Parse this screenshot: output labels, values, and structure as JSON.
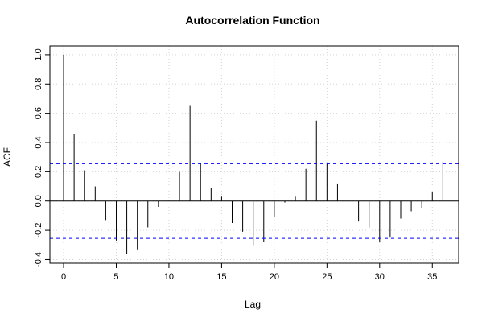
{
  "chart_data": {
    "type": "bar",
    "title": "Autocorrelation Function",
    "xlabel": "Lag",
    "ylabel": "ACF",
    "x": [
      0,
      1,
      2,
      3,
      4,
      5,
      6,
      7,
      8,
      9,
      10,
      11,
      12,
      13,
      14,
      15,
      16,
      17,
      18,
      19,
      20,
      21,
      22,
      23,
      24,
      25,
      26,
      27,
      28,
      29,
      30,
      31,
      32,
      33,
      34,
      35,
      36
    ],
    "values": [
      1.0,
      0.46,
      0.21,
      0.1,
      -0.13,
      -0.27,
      -0.36,
      -0.33,
      -0.18,
      -0.04,
      0.0,
      0.2,
      0.65,
      0.26,
      0.09,
      0.03,
      -0.15,
      -0.21,
      -0.3,
      -0.28,
      -0.11,
      -0.01,
      0.03,
      0.22,
      0.55,
      0.26,
      0.12,
      0.0,
      -0.14,
      -0.18,
      -0.28,
      -0.25,
      -0.12,
      -0.07,
      -0.05,
      0.06,
      0.27
    ],
    "confidence_limits": [
      0.255,
      -0.255
    ],
    "xlim": [
      -1.3,
      37.5
    ],
    "ylim": [
      -0.425,
      1.06
    ],
    "x_ticks": [
      0,
      5,
      10,
      15,
      20,
      25,
      30,
      35
    ],
    "y_ticks": [
      -0.4,
      -0.2,
      0.0,
      0.2,
      0.4,
      0.6,
      0.8,
      1.0
    ],
    "x_tick_labels": [
      "0",
      "5",
      "10",
      "15",
      "20",
      "25",
      "30",
      "35"
    ],
    "y_tick_labels": [
      "-0.4",
      "-0.2",
      "0.0",
      "0.2",
      "0.4",
      "0.6",
      "0.8",
      "1.0"
    ],
    "grid": true,
    "colors": {
      "bars": "#000000",
      "zero_line": "#000000",
      "confidence_line": "#0000ff",
      "grid": "#d3d3d3"
    }
  }
}
